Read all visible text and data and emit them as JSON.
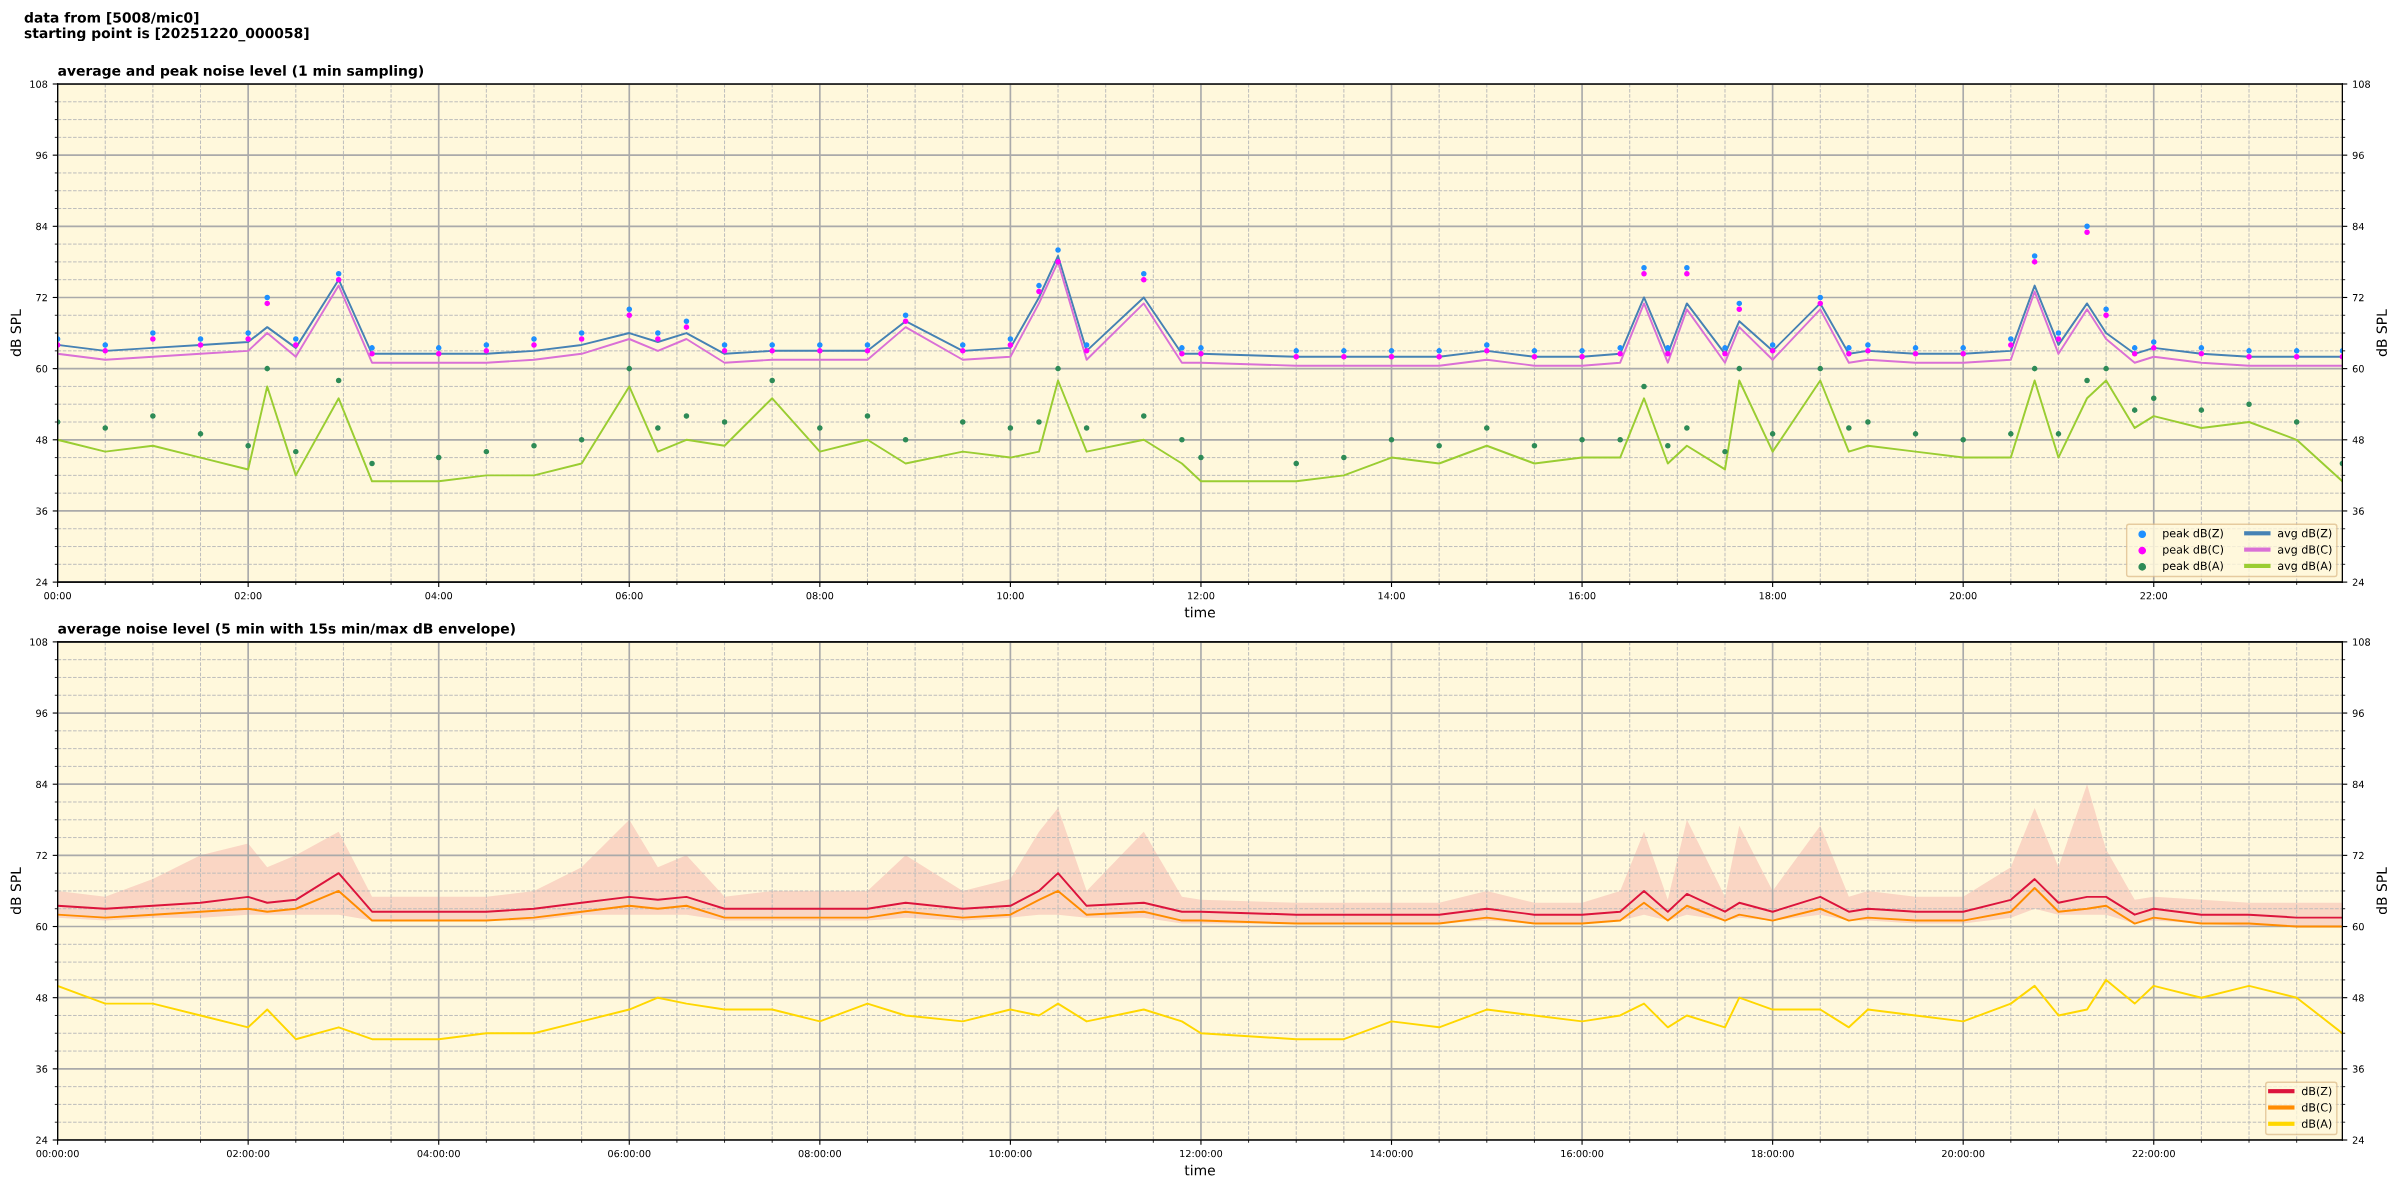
{
  "chart_data": [
    {
      "type": "line",
      "title": "average and peak noise level (1 min sampling)",
      "annotations": [
        "data from [5008/mic0]",
        "starting point is [20251220_000058]"
      ],
      "xlabel": "time",
      "ylabel": "dB SPL",
      "y2label": "dB SPL",
      "x": [
        0,
        0.5,
        1,
        1.5,
        2,
        2.2,
        2.5,
        2.95,
        3.3,
        4,
        4.5,
        5,
        5.5,
        6,
        6.3,
        6.6,
        7,
        7.5,
        8,
        8.5,
        8.9,
        9.5,
        10,
        10.3,
        10.5,
        10.8,
        11.4,
        11.8,
        12,
        13,
        13.5,
        14,
        14.5,
        15,
        15.5,
        16,
        16.4,
        16.65,
        16.9,
        17.1,
        17.5,
        17.65,
        18,
        18.5,
        18.8,
        19,
        19.5,
        20,
        20.5,
        20.75,
        21,
        21.3,
        21.5,
        21.8,
        22,
        22.5,
        23,
        23.5,
        23.98
      ],
      "series": [
        {
          "name": "peak dB(Z)",
          "type": "scatter",
          "marker": "circle",
          "color": "#1e90ff",
          "values": [
            65,
            64,
            66,
            65,
            66,
            72,
            65,
            76,
            63.5,
            63.5,
            64,
            65,
            66,
            70,
            66,
            68,
            64,
            64,
            64,
            64,
            69,
            64,
            65,
            74,
            80,
            64,
            76,
            63.5,
            63.5,
            63,
            63,
            63,
            63,
            64,
            63,
            63,
            63.5,
            77,
            63.5,
            77,
            63.5,
            71,
            64,
            72,
            63.5,
            64,
            63.5,
            63.5,
            65,
            79,
            66,
            84,
            70,
            63.5,
            64.5,
            63.5,
            63,
            63,
            63
          ]
        },
        {
          "name": "peak dB(C)",
          "type": "scatter",
          "marker": "circle",
          "color": "#ff00ff",
          "values": [
            64,
            63,
            65,
            64,
            65,
            71,
            64,
            75,
            62.5,
            62.5,
            63,
            64,
            65,
            69,
            65,
            67,
            63,
            63,
            63,
            63,
            68,
            63,
            64,
            73,
            78,
            63,
            75,
            62.5,
            62.5,
            62,
            62,
            62,
            62,
            63,
            62,
            62,
            62.5,
            76,
            62.5,
            76,
            62.5,
            70,
            63,
            71,
            62.5,
            63,
            62.5,
            62.5,
            64,
            78,
            65,
            83,
            69,
            62.5,
            63.5,
            62.5,
            62,
            62,
            62
          ]
        },
        {
          "name": "peak dB(A)",
          "type": "scatter",
          "marker": "circle",
          "color": "#2e8b57",
          "values": [
            51,
            50,
            52,
            49,
            47,
            60,
            46,
            58,
            44,
            45,
            46,
            47,
            48,
            60,
            50,
            52,
            51,
            58,
            50,
            52,
            48,
            51,
            50,
            51,
            60,
            50,
            52,
            48,
            45,
            44,
            45,
            48,
            47,
            50,
            47,
            48,
            48,
            57,
            47,
            50,
            46,
            60,
            49,
            60,
            50,
            51,
            49,
            48,
            49,
            60,
            49,
            58,
            60,
            53,
            55,
            53,
            54,
            51,
            44
          ]
        },
        {
          "name": "avg dB(Z)",
          "color": "#4682b4",
          "values": [
            64,
            63,
            63.5,
            64,
            64.5,
            67,
            63.5,
            75,
            62.5,
            62.5,
            62.5,
            63,
            64,
            66,
            64.5,
            66,
            62.5,
            63,
            63,
            63,
            68,
            63,
            63.5,
            72,
            79,
            63,
            72,
            62.5,
            62.5,
            62,
            62,
            62,
            62,
            63,
            62,
            62,
            62.5,
            72,
            62.5,
            71,
            62.5,
            68,
            63,
            71,
            62.5,
            63,
            62.5,
            62.5,
            63,
            74,
            64,
            71,
            66,
            62.5,
            63.5,
            62.5,
            62,
            62,
            62
          ]
        },
        {
          "name": "avg dB(C)",
          "color": "#da70d6",
          "values": [
            62.5,
            61.5,
            62,
            62.5,
            63,
            66,
            62,
            74,
            61,
            61,
            61,
            61.5,
            62.5,
            65,
            63,
            65,
            61,
            61.5,
            61.5,
            61.5,
            67,
            61.5,
            62,
            71,
            78,
            61.5,
            71,
            61,
            61,
            60.5,
            60.5,
            60.5,
            60.5,
            61.5,
            60.5,
            60.5,
            61,
            71,
            61,
            70,
            61,
            67,
            61.5,
            70,
            61,
            61.5,
            61,
            61,
            61.5,
            73,
            62.5,
            70,
            65,
            61,
            62,
            61,
            60.5,
            60.5,
            60.5
          ]
        },
        {
          "name": "avg dB(A)",
          "color": "#9acd32",
          "values": [
            48,
            46,
            47,
            45,
            43,
            57,
            42,
            55,
            41,
            41,
            42,
            42,
            44,
            57,
            46,
            48,
            47,
            55,
            46,
            48,
            44,
            46,
            45,
            46,
            58,
            46,
            48,
            44,
            41,
            41,
            42,
            45,
            44,
            47,
            44,
            45,
            45,
            55,
            44,
            47,
            43,
            58,
            46,
            58,
            46,
            47,
            46,
            45,
            45,
            58,
            45,
            55,
            58,
            50,
            52,
            50,
            51,
            48,
            41
          ]
        }
      ],
      "xlim": [
        0,
        23.98
      ],
      "xticks": [
        {
          "value": 0,
          "label": "00:00"
        },
        {
          "value": 2,
          "label": "02:00"
        },
        {
          "value": 4,
          "label": "04:00"
        },
        {
          "value": 6,
          "label": "06:00"
        },
        {
          "value": 8,
          "label": "08:00"
        },
        {
          "value": 10,
          "label": "10:00"
        },
        {
          "value": 12,
          "label": "12:00"
        },
        {
          "value": 14,
          "label": "14:00"
        },
        {
          "value": 16,
          "label": "16:00"
        },
        {
          "value": 18,
          "label": "18:00"
        },
        {
          "value": 20,
          "label": "20:00"
        },
        {
          "value": 22,
          "label": "22:00"
        }
      ],
      "ylim": [
        24,
        108
      ],
      "yticks": [
        24,
        36,
        48,
        60,
        72,
        84,
        96,
        108
      ],
      "y2lim": [
        24,
        108
      ],
      "y2ticks": [
        24,
        36,
        48,
        60,
        72,
        84,
        96,
        108
      ],
      "grid": true,
      "legend": "bottom right"
    },
    {
      "type": "line",
      "title": "average noise level (5 min with 15s min/max dB envelope)",
      "xlabel": "time",
      "ylabel": "dB SPL",
      "y2label": "dB SPL",
      "x": [
        0,
        0.5,
        1,
        1.5,
        2,
        2.2,
        2.5,
        2.95,
        3.3,
        4,
        4.5,
        5,
        5.5,
        6,
        6.3,
        6.6,
        7,
        7.5,
        8,
        8.5,
        8.9,
        9.5,
        10,
        10.3,
        10.5,
        10.8,
        11.4,
        11.8,
        12,
        13,
        13.5,
        14,
        14.5,
        15,
        15.5,
        16,
        16.4,
        16.65,
        16.9,
        17.1,
        17.5,
        17.65,
        18,
        18.5,
        18.8,
        19,
        19.5,
        20,
        20.5,
        20.75,
        21,
        21.3,
        21.5,
        21.8,
        22,
        22.5,
        23,
        23.5,
        23.98
      ],
      "series": [
        {
          "name": "dB(Z)",
          "color": "#dc143c",
          "values": [
            63.5,
            63,
            63.5,
            64,
            65,
            64,
            64.5,
            69,
            62.5,
            62.5,
            62.5,
            63,
            64,
            65,
            64.5,
            65,
            63,
            63,
            63,
            63,
            64,
            63,
            63.5,
            66,
            69,
            63.5,
            64,
            62.5,
            62.5,
            62,
            62,
            62,
            62,
            63,
            62,
            62,
            62.5,
            66,
            62.5,
            65.5,
            62.5,
            64,
            62.5,
            65,
            62.5,
            63,
            62.5,
            62.5,
            64.5,
            68,
            64,
            65,
            65,
            62,
            63,
            62,
            62,
            61.5,
            61.5
          ],
          "upper": [
            66,
            65,
            68,
            72,
            74,
            70,
            72,
            76,
            65,
            65,
            65,
            66,
            70,
            78,
            70,
            72,
            65,
            66,
            66,
            66,
            72,
            66,
            68,
            76,
            80,
            66,
            76,
            65,
            64.5,
            64,
            64,
            64,
            64,
            66,
            64,
            64,
            66,
            76,
            64.5,
            78,
            65,
            77,
            66,
            77,
            65,
            66,
            65,
            65,
            70,
            80,
            70,
            84,
            73,
            64.5,
            65,
            64.5,
            64,
            64,
            64
          ],
          "lower": [
            61.5,
            61,
            61.5,
            61.5,
            62,
            62,
            62,
            62,
            61,
            61,
            61,
            61,
            62,
            62,
            62,
            62,
            61,
            61,
            61,
            61,
            61.5,
            61,
            61.5,
            62,
            62,
            61.5,
            61.5,
            60.5,
            60.5,
            60.5,
            60.5,
            60.5,
            60.5,
            61,
            60.5,
            60.5,
            61,
            62,
            61,
            62,
            61,
            61.5,
            61,
            62,
            61,
            61,
            60.5,
            60.5,
            61.5,
            63,
            62,
            62,
            62,
            60.5,
            61,
            60.5,
            60,
            60,
            60
          ]
        },
        {
          "name": "dB(C)",
          "color": "#ff8c00",
          "values": [
            62,
            61.5,
            62,
            62.5,
            63,
            62.5,
            63,
            66,
            61,
            61,
            61,
            61.5,
            62.5,
            63.5,
            63,
            63.5,
            61.5,
            61.5,
            61.5,
            61.5,
            62.5,
            61.5,
            62,
            64.5,
            66,
            62,
            62.5,
            61,
            61,
            60.5,
            60.5,
            60.5,
            60.5,
            61.5,
            60.5,
            60.5,
            61,
            64,
            61,
            63.5,
            61,
            62,
            61,
            63,
            61,
            61.5,
            61,
            61,
            62.5,
            66.5,
            62.5,
            63,
            63.5,
            60.5,
            61.5,
            60.5,
            60.5,
            60,
            60
          ]
        },
        {
          "name": "dB(A)",
          "color": "#ffd700",
          "values": [
            50,
            47,
            47,
            45,
            43,
            46,
            41,
            43,
            41,
            41,
            42,
            42,
            44,
            46,
            48,
            47,
            46,
            46,
            44,
            47,
            45,
            44,
            46,
            45,
            47,
            44,
            46,
            44,
            42,
            41,
            41,
            44,
            43,
            46,
            45,
            44,
            45,
            47,
            43,
            45,
            43,
            48,
            46,
            46,
            43,
            46,
            45,
            44,
            47,
            50,
            45,
            46,
            51,
            47,
            50,
            48,
            50,
            48,
            42
          ]
        }
      ],
      "xlim": [
        0,
        23.98
      ],
      "xticks": [
        {
          "value": 0,
          "label": "00:00:00"
        },
        {
          "value": 2,
          "label": "02:00:00"
        },
        {
          "value": 4,
          "label": "04:00:00"
        },
        {
          "value": 6,
          "label": "06:00:00"
        },
        {
          "value": 8,
          "label": "08:00:00"
        },
        {
          "value": 10,
          "label": "10:00:00"
        },
        {
          "value": 12,
          "label": "12:00:00"
        },
        {
          "value": 14,
          "label": "14:00:00"
        },
        {
          "value": 16,
          "label": "16:00:00"
        },
        {
          "value": 18,
          "label": "18:00:00"
        },
        {
          "value": 20,
          "label": "20:00:00"
        },
        {
          "value": 22,
          "label": "22:00:00"
        }
      ],
      "ylim": [
        24,
        108
      ],
      "yticks": [
        24,
        36,
        48,
        60,
        72,
        84,
        96,
        108
      ],
      "y2lim": [
        24,
        108
      ],
      "y2ticks": [
        24,
        36,
        48,
        60,
        72,
        84,
        96,
        108
      ],
      "grid": true,
      "legend": "bottom right"
    }
  ]
}
